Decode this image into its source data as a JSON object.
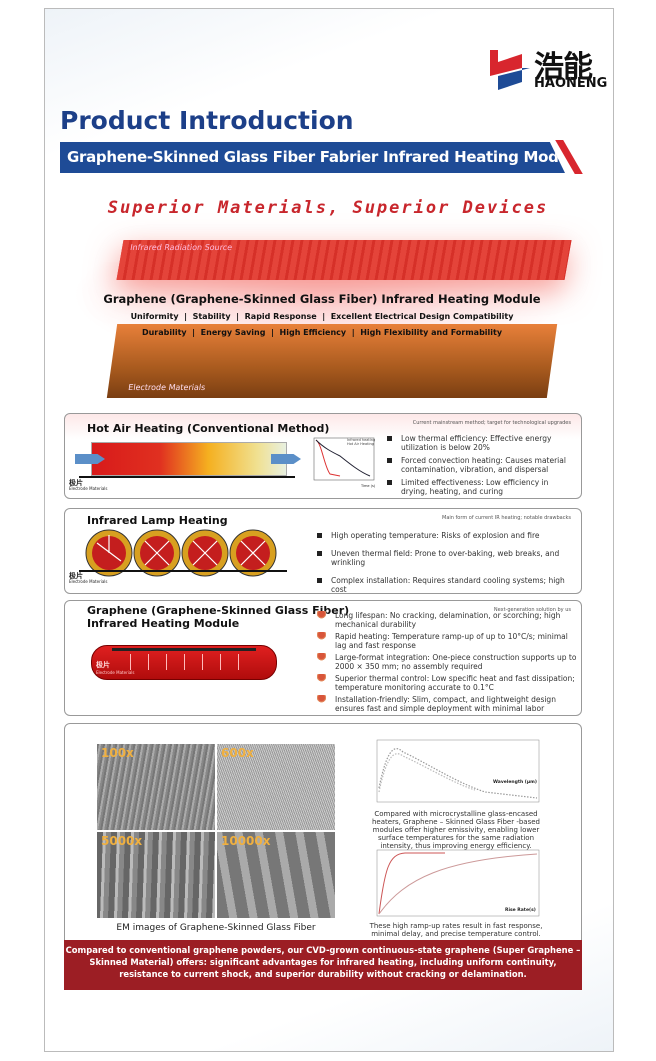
{
  "brand": {
    "name_cn": "浩能",
    "name_en": "HAONENG",
    "colors": {
      "blue": "#1e4b96",
      "red": "#d8262e"
    }
  },
  "header": {
    "title": "Product Introduction",
    "banner": "Graphene-Skinned Glass Fiber Fabrier Infrared Heating Module",
    "slogan": "Superior Materials, Superior Devices"
  },
  "hero": {
    "source_label": "Infrared Radiation Source",
    "module_title": "Graphene (Graphene-Skinned Glass Fiber) Infrared Heating Module",
    "features_line1": "Uniformity  |  Stability  |  Rapid Response  |  Excellent Electrical Design Compatibility",
    "features_line2": "Durability  |  Energy Saving  |  High Efficiency  |  High Flexibility and Formability",
    "electrode_label": "Electrode Materials"
  },
  "hot_air": {
    "title": "Hot Air Heating (Conventional Method)",
    "note": "Current mainstream method; target for technological upgrades",
    "electrode_cn": "极片",
    "electrode_label": "Electrode Materials",
    "graph_legend": [
      "Infrared heating",
      "Hot Air Heating"
    ],
    "graph_xlabel": "Time (s)",
    "bullets": [
      "Low thermal efficiency: Effective energy utilization is below 20%",
      "Forced convection heating: Causes material contamination, vibration, and dispersal",
      "Limited effectiveness: Low efficiency in drying, heating, and curing"
    ]
  },
  "lamp": {
    "title": "Infrared Lamp Heating",
    "note": "Main form of current IR heating; notable drawbacks",
    "electrode_cn": "极片",
    "electrode_label": "Electrode Materials",
    "bullets": [
      "High operating temperature: Risks of explosion and fire",
      "Uneven thermal field: Prone to over-baking, web breaks, and wrinkling",
      "Complex installation: Requires standard cooling systems; high cost"
    ]
  },
  "graphene": {
    "title_line1": "Graphene (Graphene-Skinned Glass Fiber)",
    "title_line2": "Infrared Heating Module",
    "note": "Next-generation solution by us",
    "electrode_cn": "极片",
    "electrode_label": "Electrode Materials",
    "bullets": [
      "Long lifespan: No cracking, delamination, or scorching; high mechanical durability",
      "Rapid heating: Temperature ramp-up of up to 10°C/s; minimal lag and fast response",
      "Large-format integration: One-piece construction supports up to 2000 × 350 mm; no assembly required",
      "Superior thermal control: Low specific heat and fast dissipation; temperature monitoring accurate to 0.1°C",
      "Installation-friendly: Slim, compact, and lightweight design ensures fast and simple deployment with minimal labor"
    ]
  },
  "evidence": {
    "sem_labels": [
      "100x",
      "600x",
      "5000x",
      "10000x"
    ],
    "sem_caption": "EM images of Graphene-Skinned Glass Fiber",
    "chart1_xlabel": "Wavelength (μm)",
    "chart1_caption": "Compared with microcrystalline glass-encased heaters, Graphene – Skinned Glass Fiber -based modules offer higher emissivity, enabling lower surface temperatures for the same radiation intensity, thus improving energy efficiency.",
    "chart2_xlabel": "Rise Rate(s)",
    "chart2_caption": "These high ramp-up rates result in fast response, minimal delay, and precise temperature control."
  },
  "footer": {
    "text": "Compared to conventional graphene powders, our CVD-grown continuous-state graphene (Super Graphene – Skinned Material) offers: significant advantages for infrared heating, including uniform continuity, resistance to current shock, and superior durability without cracking or delamination."
  }
}
